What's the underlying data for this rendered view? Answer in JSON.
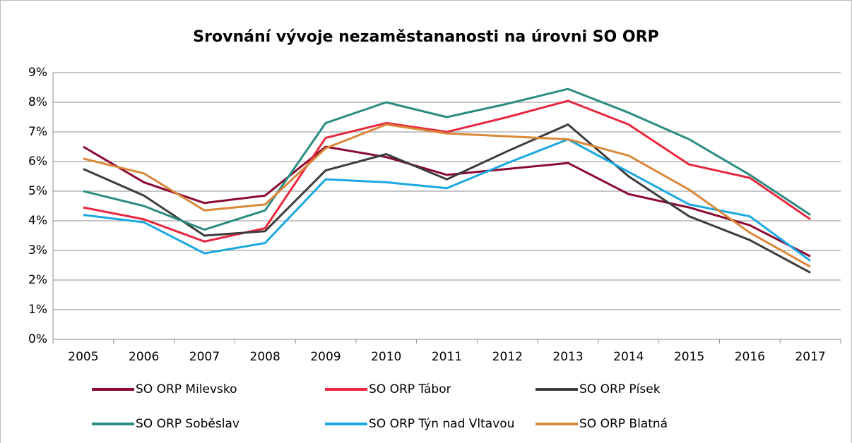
{
  "chart_data": {
    "type": "line",
    "title": "Srovnání vývoje nezaměstananosti na úrovni SO ORP",
    "categories": [
      "2005",
      "2006",
      "2007",
      "2008",
      "2009",
      "2010",
      "2011",
      "2012",
      "2013",
      "2014",
      "2015",
      "2016",
      "2017"
    ],
    "ylim": [
      0,
      9
    ],
    "yticks": [
      {
        "value": 0,
        "label": "0%"
      },
      {
        "value": 1,
        "label": "1%"
      },
      {
        "value": 2,
        "label": "2%"
      },
      {
        "value": 3,
        "label": "3%"
      },
      {
        "value": 4,
        "label": "4%"
      },
      {
        "value": 5,
        "label": "5%"
      },
      {
        "value": 6,
        "label": "6%"
      },
      {
        "value": 7,
        "label": "7%"
      },
      {
        "value": 8,
        "label": "8%"
      },
      {
        "value": 9,
        "label": "9%"
      }
    ],
    "grid": true,
    "legend": "bottom",
    "series": [
      {
        "name": "SO ORP Milevsko",
        "color": "#8b0a32",
        "values": [
          6.5,
          5.3,
          4.6,
          4.85,
          6.5,
          6.15,
          5.55,
          5.75,
          5.95,
          4.9,
          4.45,
          3.85,
          2.8
        ]
      },
      {
        "name": "SO ORP Tábor",
        "color": "#e8273f",
        "values": [
          4.45,
          4.05,
          3.3,
          3.75,
          6.8,
          7.3,
          7.0,
          7.5,
          8.05,
          7.25,
          5.9,
          5.45,
          4.05
        ]
      },
      {
        "name": "SO ORP Písek",
        "color": "#3c3c3c",
        "values": [
          5.75,
          4.85,
          3.5,
          3.65,
          5.7,
          6.25,
          5.4,
          6.35,
          7.25,
          5.5,
          4.15,
          3.35,
          2.25
        ]
      },
      {
        "name": "SO ORP Soběslav",
        "color": "#2a8c82",
        "values": [
          5.0,
          4.5,
          3.7,
          4.35,
          7.3,
          8.0,
          7.5,
          7.95,
          8.45,
          7.65,
          6.75,
          5.55,
          4.2
        ]
      },
      {
        "name": "SO ORP Týn nad Vltavou",
        "color": "#1aa8e0",
        "values": [
          4.2,
          3.95,
          2.9,
          3.25,
          5.4,
          5.3,
          5.1,
          5.95,
          6.75,
          5.65,
          4.55,
          4.15,
          2.65
        ]
      },
      {
        "name": "SO ORP Blatná",
        "color": "#d9883a",
        "values": [
          6.1,
          5.6,
          4.35,
          4.55,
          6.45,
          7.25,
          6.95,
          6.85,
          6.75,
          6.2,
          5.05,
          3.6,
          2.45
        ]
      }
    ]
  }
}
